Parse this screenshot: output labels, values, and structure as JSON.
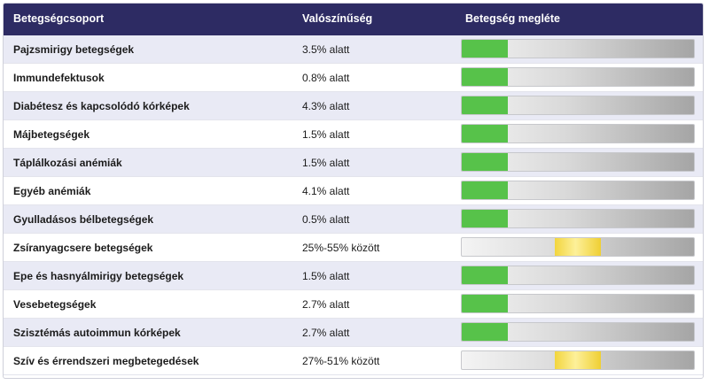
{
  "table": {
    "headers": {
      "group": "Betegségcsoport",
      "probability": "Valószínűség",
      "presence": "Betegség megléte"
    },
    "colors": {
      "green": "#57c24a",
      "yellow": "#f2d53d",
      "header": "#2d2b63"
    },
    "rows": [
      {
        "name": "Pajzsmirigy betegségek",
        "probability": "3.5% alatt",
        "indicator": "green",
        "start": 0,
        "end": 0.2
      },
      {
        "name": "Immundefektusok",
        "probability": "0.8% alatt",
        "indicator": "green",
        "start": 0,
        "end": 0.2
      },
      {
        "name": "Diabétesz és kapcsolódó kórképek",
        "probability": "4.3% alatt",
        "indicator": "green",
        "start": 0,
        "end": 0.2
      },
      {
        "name": "Májbetegségek",
        "probability": "1.5% alatt",
        "indicator": "green",
        "start": 0,
        "end": 0.2
      },
      {
        "name": "Táplálkozási anémiák",
        "probability": "1.5% alatt",
        "indicator": "green",
        "start": 0,
        "end": 0.2
      },
      {
        "name": "Egyéb anémiák",
        "probability": "4.1% alatt",
        "indicator": "green",
        "start": 0,
        "end": 0.2
      },
      {
        "name": "Gyulladásos bélbetegségek",
        "probability": "0.5% alatt",
        "indicator": "green",
        "start": 0,
        "end": 0.2
      },
      {
        "name": "Zsíranyagcsere betegségek",
        "probability": "25%-55% között",
        "indicator": "yellow",
        "start": 0.4,
        "end": 0.6
      },
      {
        "name": "Epe és hasnyálmirigy betegségek",
        "probability": "1.5% alatt",
        "indicator": "green",
        "start": 0,
        "end": 0.2
      },
      {
        "name": "Vesebetegségek",
        "probability": "2.7% alatt",
        "indicator": "green",
        "start": 0,
        "end": 0.2
      },
      {
        "name": "Szisztémás autoimmun kórképek",
        "probability": "2.7% alatt",
        "indicator": "green",
        "start": 0,
        "end": 0.2
      },
      {
        "name": "Szív és érrendszeri megbetegedések",
        "probability": "27%-51% között",
        "indicator": "yellow",
        "start": 0.4,
        "end": 0.6
      }
    ]
  }
}
